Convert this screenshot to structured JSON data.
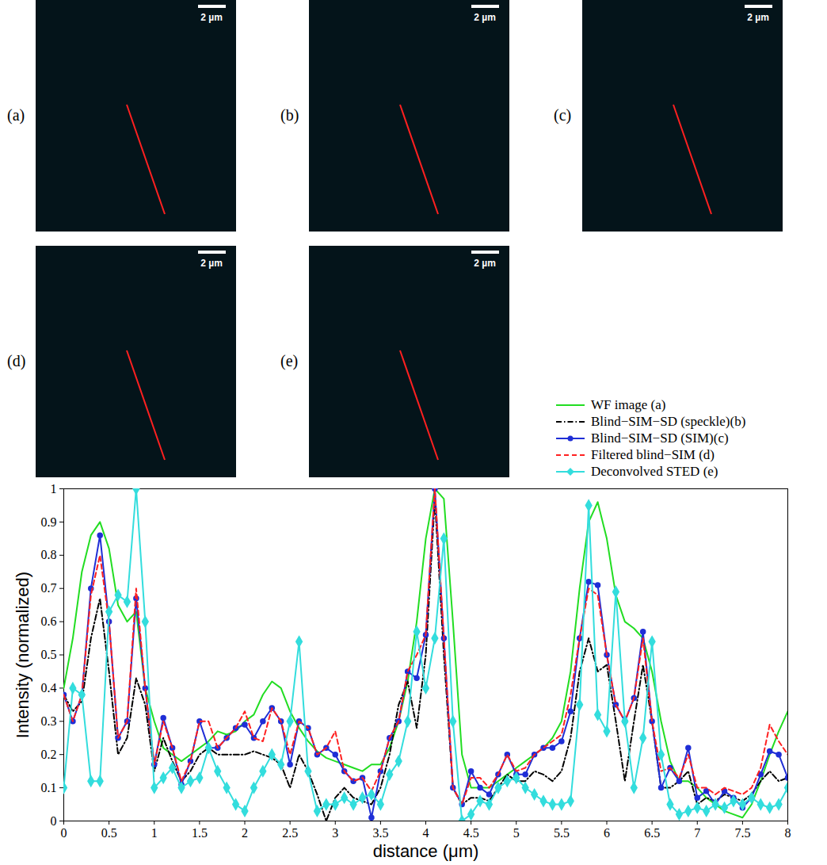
{
  "chart_data": {
    "type": "line",
    "xlabel": "distance (μm)",
    "ylabel": "Intensity (normalized)",
    "x": [
      0,
      0.1,
      0.2,
      0.3,
      0.4,
      0.5,
      0.6,
      0.7,
      0.8,
      0.9,
      1,
      1.1,
      1.2,
      1.3,
      1.4,
      1.5,
      1.6,
      1.7,
      1.8,
      1.9,
      2,
      2.1,
      2.2,
      2.3,
      2.4,
      2.5,
      2.6,
      2.7,
      2.8,
      2.9,
      3,
      3.1,
      3.2,
      3.3,
      3.4,
      3.5,
      3.6,
      3.7,
      3.8,
      3.9,
      4,
      4.1,
      4.2,
      4.3,
      4.4,
      4.5,
      4.6,
      4.7,
      4.8,
      4.9,
      5,
      5.1,
      5.2,
      5.3,
      5.4,
      5.5,
      5.6,
      5.7,
      5.8,
      5.9,
      6,
      6.1,
      6.2,
      6.3,
      6.4,
      6.5,
      6.6,
      6.7,
      6.8,
      6.9,
      7,
      7.1,
      7.2,
      7.3,
      7.4,
      7.5,
      7.6,
      7.7,
      7.8,
      7.9,
      8
    ],
    "xlim": [
      0,
      8
    ],
    "xticks": [
      0,
      0.5,
      1,
      1.5,
      2,
      2.5,
      3,
      3.5,
      4,
      4.5,
      5,
      5.5,
      6,
      6.5,
      7,
      7.5,
      8
    ],
    "ylim": [
      0,
      1
    ],
    "yticks": [
      0,
      0.1,
      0.2,
      0.3,
      0.4,
      0.5,
      0.6,
      0.7,
      0.8,
      0.9,
      1
    ],
    "legend": "top-right",
    "series": [
      {
        "name": "WF image (a)",
        "color": "#22dd22",
        "line_style": "solid",
        "marker": "none",
        "values": [
          0.4,
          0.55,
          0.75,
          0.86,
          0.9,
          0.82,
          0.65,
          0.6,
          0.63,
          0.4,
          0.3,
          0.22,
          0.2,
          0.18,
          0.2,
          0.22,
          0.24,
          0.27,
          0.26,
          0.27,
          0.3,
          0.32,
          0.38,
          0.42,
          0.4,
          0.33,
          0.28,
          0.24,
          0.21,
          0.19,
          0.18,
          0.17,
          0.16,
          0.15,
          0.17,
          0.17,
          0.22,
          0.3,
          0.42,
          0.6,
          0.85,
          1.0,
          0.97,
          0.6,
          0.2,
          0.1,
          0.1,
          0.1,
          0.12,
          0.14,
          0.16,
          0.18,
          0.2,
          0.22,
          0.25,
          0.3,
          0.45,
          0.7,
          0.9,
          0.96,
          0.85,
          0.68,
          0.6,
          0.58,
          0.55,
          0.45,
          0.3,
          0.18,
          0.12,
          0.12,
          0.1,
          0.07,
          0.05,
          0.03,
          0.02,
          0.01,
          0.05,
          0.12,
          0.2,
          0.27,
          0.33
        ]
      },
      {
        "name": "Blind−SIM−SD (speckle)(b)",
        "color": "#000000",
        "line_style": "dashdot",
        "marker": "none",
        "values": [
          0.38,
          0.33,
          0.36,
          0.55,
          0.67,
          0.45,
          0.2,
          0.25,
          0.43,
          0.35,
          0.15,
          0.25,
          0.18,
          0.12,
          0.15,
          0.2,
          0.22,
          0.2,
          0.2,
          0.2,
          0.2,
          0.21,
          0.2,
          0.19,
          0.17,
          0.1,
          0.2,
          0.15,
          0.08,
          0.0,
          0.07,
          0.1,
          0.07,
          0.06,
          0.05,
          0.1,
          0.2,
          0.35,
          0.42,
          0.28,
          0.5,
          0.97,
          0.5,
          0.1,
          0.05,
          0.07,
          0.07,
          0.06,
          0.1,
          0.14,
          0.12,
          0.12,
          0.15,
          0.14,
          0.12,
          0.15,
          0.25,
          0.45,
          0.55,
          0.45,
          0.47,
          0.3,
          0.12,
          0.3,
          0.47,
          0.3,
          0.1,
          0.1,
          0.12,
          0.15,
          0.05,
          0.07,
          0.06,
          0.08,
          0.07,
          0.06,
          0.08,
          0.12,
          0.15,
          0.12,
          0.13
        ]
      },
      {
        "name": "Blind−SIM−SD (SIM)(c)",
        "color": "#1f2ed6",
        "line_style": "solid",
        "marker": "circle",
        "values": [
          0.38,
          0.3,
          0.38,
          0.7,
          0.86,
          0.6,
          0.25,
          0.3,
          0.67,
          0.4,
          0.17,
          0.31,
          0.22,
          0.11,
          0.18,
          0.3,
          0.22,
          0.22,
          0.25,
          0.28,
          0.29,
          0.25,
          0.3,
          0.34,
          0.3,
          0.17,
          0.3,
          0.28,
          0.2,
          0.22,
          0.2,
          0.15,
          0.12,
          0.13,
          0.01,
          0.15,
          0.25,
          0.3,
          0.45,
          0.43,
          0.56,
          1.0,
          0.55,
          0.1,
          0.05,
          0.15,
          0.1,
          0.08,
          0.14,
          0.2,
          0.14,
          0.14,
          0.2,
          0.22,
          0.22,
          0.24,
          0.33,
          0.55,
          0.72,
          0.71,
          0.5,
          0.35,
          0.3,
          0.37,
          0.57,
          0.3,
          0.1,
          0.16,
          0.12,
          0.22,
          0.07,
          0.09,
          0.05,
          0.09,
          0.07,
          0.04,
          0.07,
          0.14,
          0.21,
          0.2,
          0.13
        ]
      },
      {
        "name": "Filtered blind−SIM (d)",
        "color": "#ff2020",
        "line_style": "dashed",
        "marker": "none",
        "values": [
          0.38,
          0.3,
          0.38,
          0.68,
          0.8,
          0.6,
          0.25,
          0.3,
          0.7,
          0.4,
          0.17,
          0.3,
          0.22,
          0.12,
          0.18,
          0.3,
          0.3,
          0.22,
          0.25,
          0.28,
          0.33,
          0.25,
          0.24,
          0.34,
          0.3,
          0.2,
          0.3,
          0.28,
          0.2,
          0.22,
          0.27,
          0.15,
          0.12,
          0.13,
          0.09,
          0.15,
          0.25,
          0.3,
          0.45,
          0.5,
          0.56,
          1.0,
          0.55,
          0.1,
          0.05,
          0.13,
          0.13,
          0.1,
          0.14,
          0.2,
          0.15,
          0.16,
          0.2,
          0.22,
          0.24,
          0.26,
          0.38,
          0.55,
          0.7,
          0.68,
          0.5,
          0.35,
          0.3,
          0.37,
          0.55,
          0.3,
          0.15,
          0.16,
          0.13,
          0.2,
          0.1,
          0.1,
          0.08,
          0.1,
          0.09,
          0.08,
          0.1,
          0.16,
          0.29,
          0.24,
          0.2
        ]
      },
      {
        "name": "Deconvolved STED (e)",
        "color": "#33dddd",
        "line_style": "solid",
        "marker": "diamond",
        "values": [
          0.1,
          0.4,
          0.38,
          0.12,
          0.12,
          0.63,
          0.68,
          0.66,
          1.0,
          0.6,
          0.1,
          0.13,
          0.16,
          0.1,
          0.12,
          0.13,
          0.22,
          0.15,
          0.1,
          0.05,
          0.03,
          0.1,
          0.15,
          0.2,
          0.17,
          0.3,
          0.54,
          0.15,
          0.03,
          0.05,
          0.05,
          0.07,
          0.05,
          0.07,
          0.08,
          0.05,
          0.14,
          0.18,
          0.3,
          0.57,
          0.4,
          0.55,
          0.85,
          0.3,
          0.0,
          0.02,
          0.06,
          0.05,
          0.1,
          0.12,
          0.13,
          0.1,
          0.08,
          0.06,
          0.05,
          0.05,
          0.06,
          0.35,
          0.95,
          0.32,
          0.27,
          0.69,
          0.3,
          0.1,
          0.25,
          0.54,
          0.2,
          0.05,
          0.02,
          0.03,
          0.04,
          0.03,
          0.05,
          0.04,
          0.06,
          0.05,
          0.07,
          0.05,
          0.04,
          0.05,
          0.1
        ]
      }
    ]
  },
  "images": [
    {
      "label": "(a)",
      "scale_bar": "2 µm"
    },
    {
      "label": "(b)",
      "scale_bar": "2 µm"
    },
    {
      "label": "(c)",
      "scale_bar": "2 µm"
    },
    {
      "label": "(d)",
      "scale_bar": "2 µm"
    },
    {
      "label": "(e)",
      "scale_bar": "2 µm"
    }
  ]
}
